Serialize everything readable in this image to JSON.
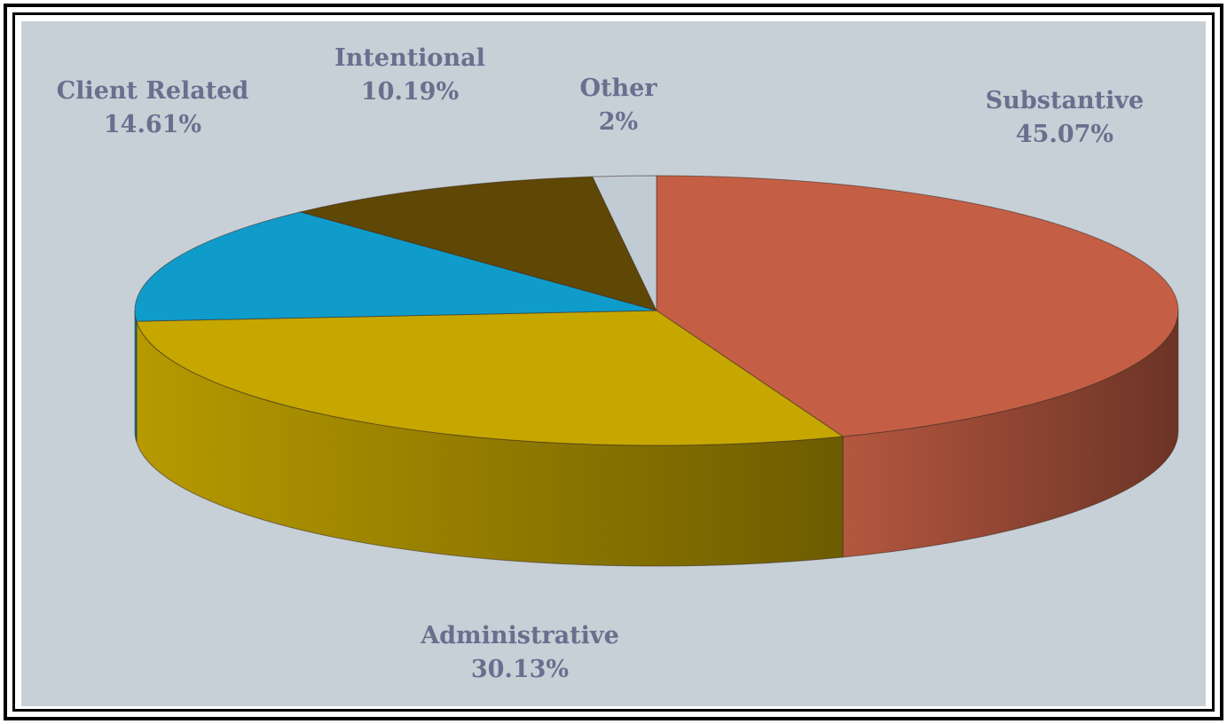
{
  "chart_data": {
    "type": "pie",
    "title": "",
    "start_angle_deg": 270,
    "direction": "clockwise",
    "slices": [
      {
        "label": "Substantive",
        "value_text": "45.07%",
        "value": 45.07,
        "color": "#c45f45"
      },
      {
        "label": "Administrative",
        "value_text": "30.13%",
        "value": 30.13,
        "color": "#c6a700"
      },
      {
        "label": "Client Related",
        "value_text": "14.61%",
        "value": 14.61,
        "color": "#0f9ccb"
      },
      {
        "label": "Intentional",
        "value_text": "10.19%",
        "value": 10.19,
        "color": "#5f4705"
      },
      {
        "label": "Other",
        "value_text": "2%",
        "value": 2,
        "color": "#c1cbd3"
      }
    ],
    "style": "3d-perspective",
    "background_color": "#c7d0d7",
    "label_color": "#6a6f8e"
  }
}
